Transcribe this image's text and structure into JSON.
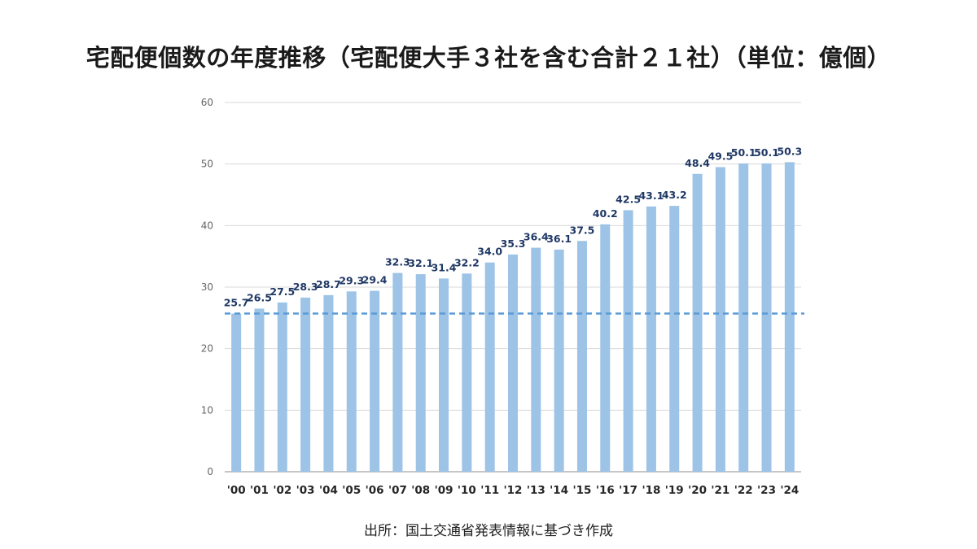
{
  "colors": {
    "bar": "#9dc3e6",
    "data_label": "#1f3864",
    "reference_line": "#5b9bd5",
    "grid": "#d9d9d9",
    "axis": "#8c8c8c",
    "tick_y": "#666666",
    "tick_x": "#262626"
  },
  "chart_data": {
    "type": "bar",
    "title": "宅配便個数の年度推移（宅配便大手３社を含む合計２１社）（単位：億個）",
    "categories": [
      "'00",
      "'01",
      "'02",
      "'03",
      "'04",
      "'05",
      "'06",
      "'07",
      "'08",
      "'09",
      "'10",
      "'11",
      "'12",
      "'13",
      "'14",
      "'15",
      "'16",
      "'17",
      "'18",
      "'19",
      "'20",
      "'21",
      "'22",
      "'23",
      "'24"
    ],
    "values": [
      25.7,
      26.5,
      27.5,
      28.3,
      28.7,
      29.3,
      29.4,
      32.3,
      32.1,
      31.4,
      32.2,
      34.0,
      35.3,
      36.4,
      36.1,
      37.5,
      40.2,
      42.5,
      43.1,
      43.2,
      48.4,
      49.5,
      50.1,
      50.1,
      50.3
    ],
    "data_labels": [
      "25.7",
      "26.5",
      "27.5",
      "28.3",
      "28.7",
      "29.3",
      "29.4",
      "32.3",
      "32.1",
      "31.4",
      "32.2",
      "34.0",
      "35.3",
      "36.4",
      "36.1",
      "37.5",
      "40.2",
      "42.5",
      "43.1",
      "43.2",
      "48.4",
      "49.5",
      "50.1",
      "50.1",
      "50.3"
    ],
    "reference_line": {
      "value": 25.7,
      "style": "dashed"
    },
    "ylim": [
      0,
      60
    ],
    "yticks": [
      "0",
      "10",
      "20",
      "30",
      "40",
      "50",
      "60"
    ],
    "xlabel": "",
    "ylabel": "",
    "grid": true,
    "legend": "none"
  },
  "source_note": "出所：国土交通省発表情報に基づき作成"
}
